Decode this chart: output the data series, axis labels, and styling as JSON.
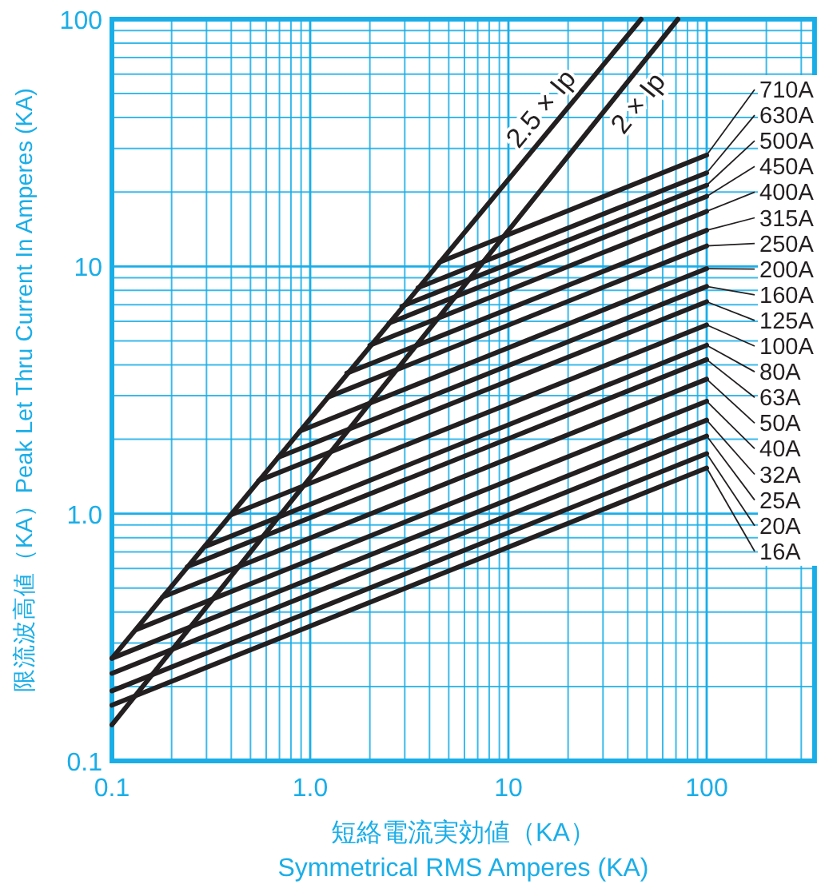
{
  "chart_data": {
    "type": "line",
    "xlabel": "短絡電流実効値（KA）\nSymmetrical RMS Amperes  (KA)",
    "ylabel": "限流波高値（KA）Peak Let Thru Current In Amperes (KA)",
    "log": "xy",
    "grid": true,
    "legend": "right",
    "xlim": [
      0.1,
      350
    ],
    "ylim": [
      0.1,
      100
    ],
    "xticks": [
      0.1,
      {
        "value": 0.2,
        "label": null
      },
      {
        "value": 0.3,
        "label": null
      },
      {
        "value": 0.4,
        "label": null
      },
      {
        "value": 0.5,
        "label": null
      },
      {
        "value": 0.6,
        "label": null
      },
      {
        "value": 0.7,
        "label": null
      },
      {
        "value": 0.8,
        "label": null
      },
      {
        "value": 0.9,
        "label": null
      },
      {
        "value": 1,
        "label": "1.0"
      },
      {
        "value": 2,
        "label": null
      },
      {
        "value": 3,
        "label": null
      },
      {
        "value": 4,
        "label": null
      },
      {
        "value": 5,
        "label": null
      },
      {
        "value": 6,
        "label": null
      },
      {
        "value": 7,
        "label": null
      },
      {
        "value": 8,
        "label": null
      },
      {
        "value": 9,
        "label": null
      },
      10,
      {
        "value": 20,
        "label": null
      },
      {
        "value": 30,
        "label": null
      },
      {
        "value": 40,
        "label": null
      },
      {
        "value": 50,
        "label": null
      },
      {
        "value": 60,
        "label": null
      },
      {
        "value": 70,
        "label": null
      },
      {
        "value": 80,
        "label": null
      },
      {
        "value": 90,
        "label": null
      },
      100,
      {
        "value": 200,
        "label": null
      },
      {
        "value": 300,
        "label": null
      }
    ],
    "yticks": [
      0.1,
      {
        "value": 0.2,
        "label": null
      },
      {
        "value": 0.3,
        "label": null
      },
      {
        "value": 0.4,
        "label": null
      },
      {
        "value": 0.5,
        "label": null
      },
      {
        "value": 0.6,
        "label": null
      },
      {
        "value": 0.7,
        "label": null
      },
      {
        "value": 0.8,
        "label": null
      },
      {
        "value": 0.9,
        "label": null
      },
      {
        "value": 1,
        "label": "1.0"
      },
      {
        "value": 2,
        "label": null
      },
      {
        "value": 3,
        "label": null
      },
      {
        "value": 4,
        "label": null
      },
      {
        "value": 5,
        "label": null
      },
      {
        "value": 6,
        "label": null
      },
      {
        "value": 7,
        "label": null
      },
      {
        "value": 8,
        "label": null
      },
      {
        "value": 9,
        "label": null
      },
      10,
      {
        "value": 20,
        "label": null
      },
      {
        "value": 30,
        "label": null
      },
      {
        "value": 40,
        "label": null
      },
      {
        "value": 50,
        "label": null
      },
      {
        "value": 60,
        "label": null
      },
      {
        "value": 70,
        "label": null
      },
      {
        "value": 80,
        "label": null
      },
      {
        "value": 90,
        "label": null
      },
      100
    ],
    "series": [
      {
        "name": "2.5 × Ip",
        "color": "#231f20",
        "x": [
          0.1,
          46.7
        ],
        "values": [
          0.26,
          100
        ]
      },
      {
        "name": "2 × Ip",
        "color": "#231f20",
        "x": [
          0.1,
          71.6
        ],
        "values": [
          0.14,
          100
        ]
      },
      {
        "name": "710A",
        "color": "#231f20",
        "x": [
          4.5,
          100
        ],
        "values": [
          10.4,
          28.2
        ]
      },
      {
        "name": "630A",
        "color": "#231f20",
        "x": [
          3.5,
          100
        ],
        "values": [
          8.2,
          23.9
        ]
      },
      {
        "name": "500A",
        "color": "#231f20",
        "x": [
          2.9,
          100
        ],
        "values": [
          6.9,
          21.3
        ]
      },
      {
        "name": "450A",
        "color": "#231f20",
        "x": [
          2.5,
          100
        ],
        "values": [
          5.9,
          19.2
        ]
      },
      {
        "name": "400A",
        "color": "#231f20",
        "x": [
          2.0,
          100
        ],
        "values": [
          4.8,
          16.7
        ]
      },
      {
        "name": "315A",
        "color": "#231f20",
        "x": [
          1.53,
          100
        ],
        "values": [
          3.7,
          14.0
        ]
      },
      {
        "name": "250A",
        "color": "#231f20",
        "x": [
          1.23,
          100
        ],
        "values": [
          2.96,
          12.1
        ]
      },
      {
        "name": "200A",
        "color": "#231f20",
        "x": [
          0.89,
          100
        ],
        "values": [
          2.16,
          9.8
        ]
      },
      {
        "name": "160A",
        "color": "#231f20",
        "x": [
          0.69,
          100
        ],
        "values": [
          1.69,
          8.3
        ]
      },
      {
        "name": "125A",
        "color": "#231f20",
        "x": [
          0.55,
          100
        ],
        "values": [
          1.36,
          7.2
        ]
      },
      {
        "name": "100A",
        "color": "#231f20",
        "x": [
          0.4,
          100
        ],
        "values": [
          0.99,
          5.8
        ]
      },
      {
        "name": "80A",
        "color": "#231f20",
        "x": [
          0.3,
          100
        ],
        "values": [
          0.74,
          4.8
        ]
      },
      {
        "name": "63A",
        "color": "#231f20",
        "x": [
          0.24,
          100
        ],
        "values": [
          0.61,
          4.2
        ]
      },
      {
        "name": "50A",
        "color": "#231f20",
        "x": [
          0.18,
          100
        ],
        "values": [
          0.46,
          3.5
        ]
      },
      {
        "name": "40A",
        "color": "#231f20",
        "x": [
          0.133,
          100
        ],
        "values": [
          0.34,
          2.85
        ]
      },
      {
        "name": "32A",
        "color": "#231f20",
        "x": [
          0.1,
          100
        ],
        "values": [
          0.26,
          2.39
        ]
      },
      {
        "name": "25A",
        "color": "#231f20",
        "x": [
          0.1,
          100
        ],
        "values": [
          0.226,
          2.06
        ]
      },
      {
        "name": "20A",
        "color": "#231f20",
        "x": [
          0.1,
          100
        ],
        "values": [
          0.192,
          1.75
        ]
      },
      {
        "name": "16A",
        "color": "#231f20",
        "x": [
          0.1,
          100
        ],
        "values": [
          0.168,
          1.53
        ]
      }
    ]
  }
}
